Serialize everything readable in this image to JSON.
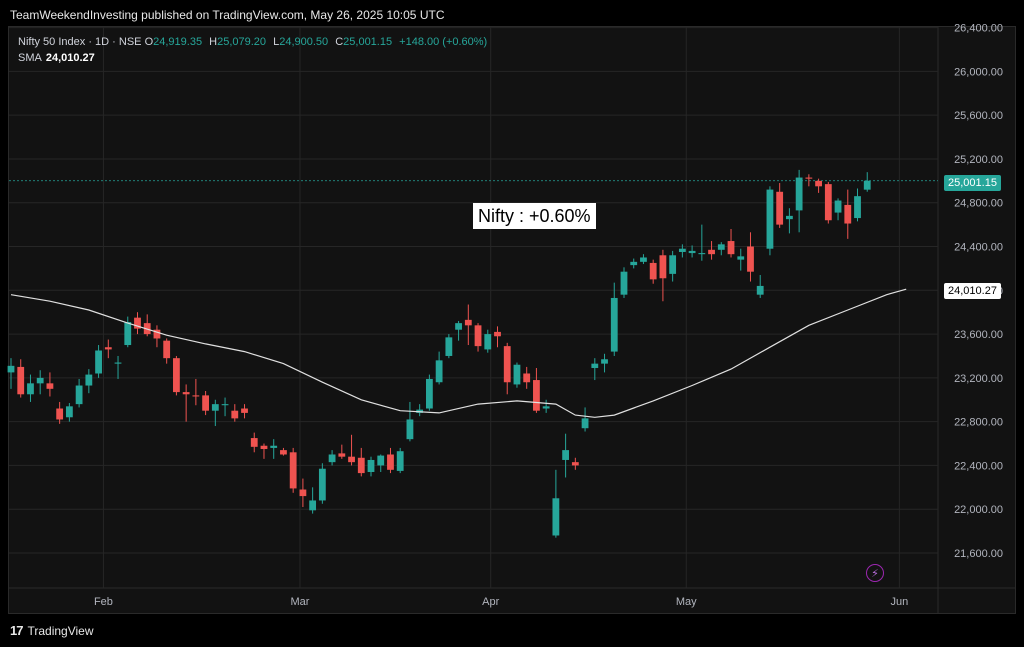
{
  "publisher_line": "TeamWeekendInvesting published on TradingView.com, May 26, 2025 10:05 UTC",
  "legend": {
    "symbol": "Nifty 50 Index · 1D · NSE",
    "open_label": "O",
    "open": "24,919.35",
    "high_label": "H",
    "high": "25,079.20",
    "low_label": "L",
    "low": "24,900.50",
    "close_label": "C",
    "close": "25,001.15",
    "change": "+148.00 (+0.60%)",
    "sma_label": "SMA",
    "sma_value": "24,010.27"
  },
  "annotation": "Nifty : +0.60%",
  "price_tags": {
    "last": "25,001.15",
    "sma": "24,010.27"
  },
  "footer": {
    "brand": "TradingView"
  },
  "colors": {
    "up": "#26a69a",
    "down": "#ef5350",
    "sma": "#e0e0e0",
    "grid": "#262626",
    "background": "#121212"
  },
  "icons": {
    "brand": "tradingview-logo-icon",
    "flash": "lightning-icon"
  },
  "chart_data": {
    "type": "candlestick",
    "title": "Nifty 50 Index · 1D · NSE",
    "ylim": [
      21200,
      26600
    ],
    "y_ticks": [
      21600,
      22000,
      22400,
      22800,
      23200,
      23600,
      24000,
      24400,
      24800,
      25200,
      25600,
      26000,
      26400
    ],
    "y_tick_labels": [
      "21,600.00",
      "22,000.00",
      "22,400.00",
      "22,800.00",
      "23,200.00",
      "23,600.00",
      "24,000.00",
      "24,400.00",
      "24,800.00",
      "25,200.00",
      "25,600.00",
      "26,000.00",
      "26,400.00"
    ],
    "x_ticks": [
      {
        "label": "Feb",
        "index": 9.5
      },
      {
        "label": "Mar",
        "index": 29.7
      },
      {
        "label": "Apr",
        "index": 49.3
      },
      {
        "label": "May",
        "index": 69.4
      },
      {
        "label": "Jun",
        "index": 91.3
      }
    ],
    "grid": true,
    "series": [
      {
        "name": "Candles",
        "ohlc": [
          [
            23250,
            23380,
            23100,
            23310
          ],
          [
            23300,
            23370,
            23020,
            23050
          ],
          [
            23050,
            23230,
            22980,
            23150
          ],
          [
            23150,
            23270,
            23050,
            23200
          ],
          [
            23150,
            23250,
            23030,
            23100
          ],
          [
            22920,
            22980,
            22780,
            22820
          ],
          [
            22840,
            22970,
            22800,
            22940
          ],
          [
            22960,
            23190,
            22930,
            23130
          ],
          [
            23130,
            23280,
            23060,
            23230
          ],
          [
            23240,
            23500,
            23200,
            23450
          ],
          [
            23480,
            23550,
            23380,
            23460
          ],
          [
            23330,
            23400,
            23190,
            23340
          ],
          [
            23500,
            23760,
            23480,
            23710
          ],
          [
            23750,
            23800,
            23600,
            23650
          ],
          [
            23700,
            23780,
            23580,
            23600
          ],
          [
            23640,
            23680,
            23480,
            23560
          ],
          [
            23540,
            23560,
            23330,
            23380
          ],
          [
            23380,
            23400,
            23040,
            23070
          ],
          [
            23070,
            23140,
            22800,
            23050
          ],
          [
            23040,
            23190,
            22950,
            23030
          ],
          [
            23040,
            23080,
            22860,
            22900
          ],
          [
            22900,
            23000,
            22760,
            22960
          ],
          [
            22950,
            23020,
            22850,
            22960
          ],
          [
            22900,
            22960,
            22800,
            22830
          ],
          [
            22920,
            22960,
            22830,
            22880
          ],
          [
            22650,
            22700,
            22520,
            22570
          ],
          [
            22580,
            22600,
            22460,
            22550
          ],
          [
            22560,
            22640,
            22460,
            22580
          ],
          [
            22540,
            22560,
            22490,
            22500
          ],
          [
            22520,
            22560,
            22150,
            22190
          ],
          [
            22180,
            22280,
            22020,
            22120
          ],
          [
            21990,
            22200,
            21960,
            22080
          ],
          [
            22080,
            22420,
            22050,
            22370
          ],
          [
            22430,
            22540,
            22400,
            22500
          ],
          [
            22510,
            22590,
            22460,
            22480
          ],
          [
            22480,
            22680,
            22400,
            22430
          ],
          [
            22470,
            22560,
            22300,
            22330
          ],
          [
            22340,
            22480,
            22300,
            22450
          ],
          [
            22400,
            22500,
            22340,
            22490
          ],
          [
            22500,
            22560,
            22330,
            22360
          ],
          [
            22350,
            22560,
            22330,
            22530
          ],
          [
            22640,
            22980,
            22620,
            22820
          ],
          [
            22880,
            22960,
            22850,
            22910
          ],
          [
            22920,
            23230,
            22900,
            23190
          ],
          [
            23160,
            23440,
            23140,
            23360
          ],
          [
            23400,
            23600,
            23380,
            23570
          ],
          [
            23640,
            23720,
            23540,
            23700
          ],
          [
            23730,
            23870,
            23500,
            23680
          ],
          [
            23680,
            23700,
            23440,
            23490
          ],
          [
            23460,
            23640,
            23430,
            23600
          ],
          [
            23620,
            23670,
            23480,
            23580
          ],
          [
            23490,
            23520,
            23050,
            23160
          ],
          [
            23140,
            23340,
            23110,
            23320
          ],
          [
            23240,
            23300,
            23100,
            23160
          ],
          [
            23180,
            23290,
            22880,
            22900
          ],
          [
            22920,
            23000,
            22880,
            22940
          ],
          [
            21760,
            22360,
            21740,
            22100
          ],
          [
            22450,
            22690,
            22290,
            22540
          ],
          [
            22430,
            22470,
            22360,
            22400
          ],
          [
            22740,
            22930,
            22710,
            22830
          ],
          [
            23290,
            23380,
            23180,
            23330
          ],
          [
            23330,
            23420,
            23250,
            23370
          ],
          [
            23440,
            24070,
            23400,
            23930
          ],
          [
            23960,
            24210,
            23930,
            24170
          ],
          [
            24230,
            24290,
            24200,
            24260
          ],
          [
            24260,
            24330,
            24240,
            24300
          ],
          [
            24250,
            24280,
            24060,
            24100
          ],
          [
            24320,
            24370,
            23900,
            24110
          ],
          [
            24150,
            24360,
            24080,
            24320
          ],
          [
            24350,
            24420,
            24300,
            24380
          ],
          [
            24340,
            24410,
            24300,
            24360
          ],
          [
            24330,
            24600,
            24270,
            24340
          ],
          [
            24370,
            24450,
            24280,
            24330
          ],
          [
            24370,
            24440,
            24320,
            24420
          ],
          [
            24450,
            24560,
            24300,
            24330
          ],
          [
            24280,
            24380,
            24180,
            24310
          ],
          [
            24400,
            24530,
            24080,
            24170
          ],
          [
            23960,
            24140,
            23930,
            24040
          ],
          [
            24380,
            24950,
            24320,
            24920
          ],
          [
            24900,
            24980,
            24570,
            24600
          ],
          [
            24650,
            24750,
            24520,
            24680
          ],
          [
            24730,
            25100,
            24530,
            25030
          ],
          [
            25030,
            25060,
            24950,
            25020
          ],
          [
            25000,
            25020,
            24890,
            24950
          ],
          [
            24970,
            24990,
            24610,
            24640
          ],
          [
            24710,
            24840,
            24640,
            24820
          ],
          [
            24780,
            24920,
            24470,
            24610
          ],
          [
            24660,
            24930,
            24630,
            24860
          ],
          [
            24919.35,
            25079.2,
            24900.5,
            25001.15
          ]
        ]
      },
      {
        "name": "SMA",
        "values": [
          [
            0,
            23960
          ],
          [
            4,
            23900
          ],
          [
            8,
            23820
          ],
          [
            12,
            23700
          ],
          [
            16,
            23590
          ],
          [
            20,
            23510
          ],
          [
            24,
            23440
          ],
          [
            28,
            23330
          ],
          [
            32,
            23160
          ],
          [
            36,
            23000
          ],
          [
            40,
            22900
          ],
          [
            44,
            22880
          ],
          [
            48,
            22960
          ],
          [
            52,
            22990
          ],
          [
            56,
            22960
          ],
          [
            58,
            22860
          ],
          [
            60,
            22840
          ],
          [
            62,
            22860
          ],
          [
            66,
            22990
          ],
          [
            70,
            23130
          ],
          [
            74,
            23280
          ],
          [
            78,
            23480
          ],
          [
            82,
            23680
          ],
          [
            86,
            23820
          ],
          [
            90,
            23960
          ],
          [
            92,
            24010.27
          ]
        ]
      }
    ]
  }
}
